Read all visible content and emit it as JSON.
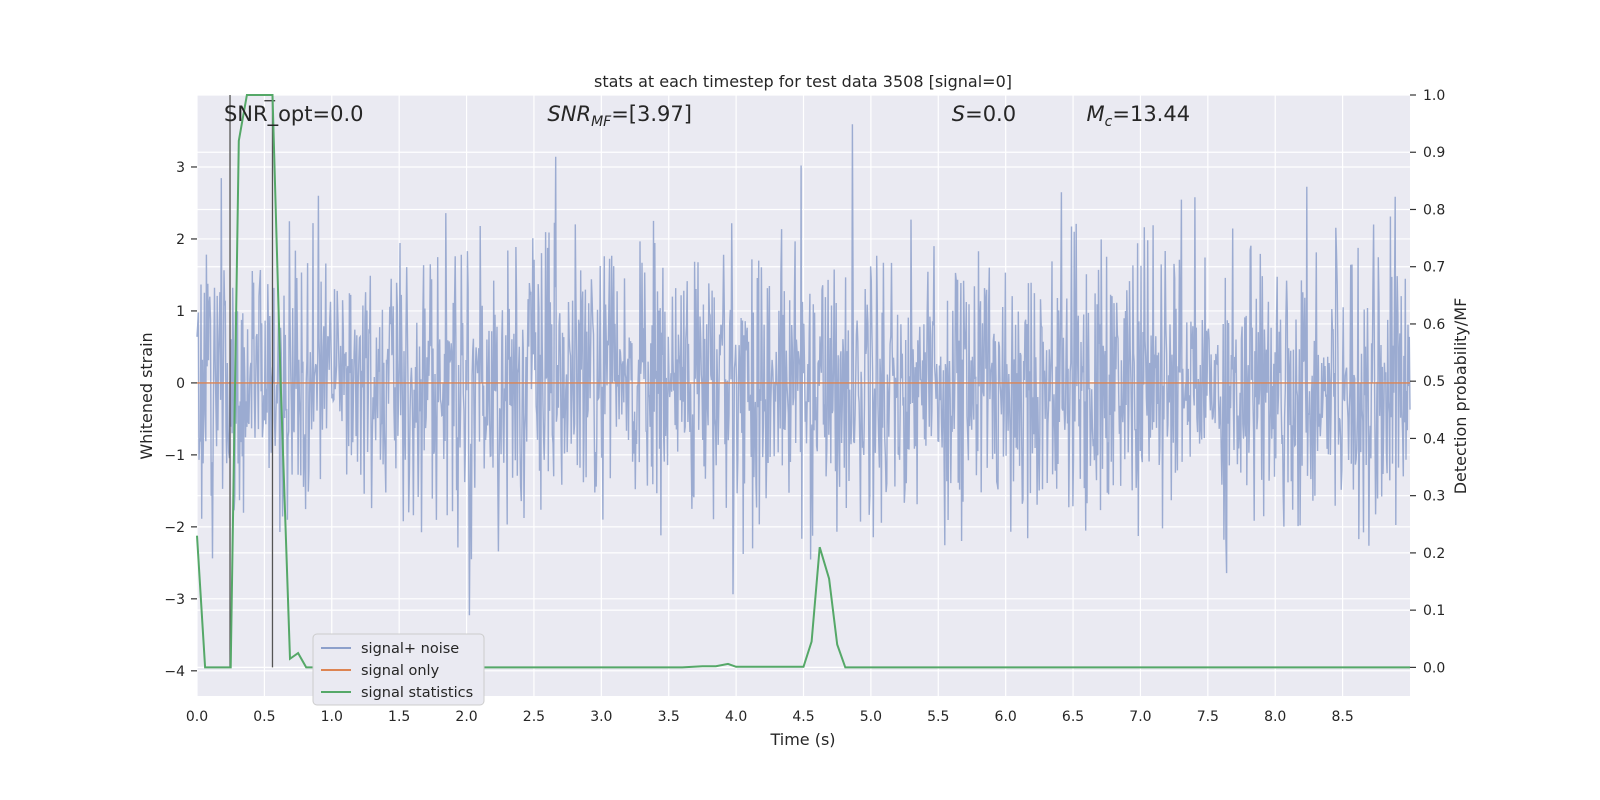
{
  "chart_data": {
    "type": "line",
    "title": "stats at each timestep for test data 3508 [signal=0]",
    "xlabel": "Time (s)",
    "ylabel": "Whitened strain",
    "ylabel_right": "Detection probability/MF",
    "xlim": [
      0.0,
      9.0
    ],
    "ylim": [
      -4.35,
      4.0
    ],
    "ylim_right": [
      -0.05,
      1.0
    ],
    "x_ticks": [
      "0.0",
      "0.5",
      "1.0",
      "1.5",
      "2.0",
      "2.5",
      "3.0",
      "3.5",
      "4.0",
      "4.5",
      "5.0",
      "5.5",
      "6.0",
      "6.5",
      "7.0",
      "7.5",
      "8.0",
      "8.5"
    ],
    "y_ticks": [
      "3",
      "2",
      "1",
      "0",
      "−1",
      "−2",
      "−3",
      "−4"
    ],
    "y_ticks_right": [
      "1.0",
      "0.9",
      "0.8",
      "0.7",
      "0.6",
      "0.5",
      "0.4",
      "0.3",
      "0.2",
      "0.1",
      "0.0"
    ],
    "grid": true,
    "legend_position": "lower-left",
    "annotations": [
      {
        "text": "SNR_opt=0.0",
        "x": 0.2
      },
      {
        "text": "SNR_MF=[3.97]",
        "x": 2.6
      },
      {
        "text": "S=0.0",
        "x": 5.6
      },
      {
        "text": "M_c=13.44",
        "x": 6.6
      }
    ],
    "series": [
      {
        "name": "signal+ noise",
        "axis": "left",
        "color": "#8da0cb",
        "description_level": "gaussian noise band about 0, mostly within ±2 with peaks near ±3.5",
        "noise_std": 0.95,
        "samples": 1800
      },
      {
        "name": "signal only",
        "axis": "left",
        "color": "#dd8452",
        "x": [
          0.0,
          9.0
        ],
        "y": [
          0.0,
          0.0
        ]
      },
      {
        "name": "signal statistics",
        "axis": "right",
        "color": "#55a868",
        "x": [
          0.0,
          0.06,
          0.25,
          0.31,
          0.37,
          0.44,
          0.5,
          0.56,
          0.62,
          0.69,
          0.75,
          0.81,
          1.0,
          3.6,
          3.75,
          3.85,
          3.94,
          4.0,
          4.5,
          4.56,
          4.62,
          4.69,
          4.75,
          4.81,
          9.0
        ],
        "y": [
          0.23,
          0.0,
          0.0,
          0.92,
          1.0,
          1.0,
          1.0,
          1.0,
          0.5,
          0.015,
          0.025,
          0.0,
          0.0,
          0.0,
          0.002,
          0.002,
          0.006,
          0.001,
          0.001,
          0.045,
          0.21,
          0.155,
          0.04,
          0.0,
          0.0
        ]
      }
    ],
    "markers": [
      {
        "name": "vertical-marker-start",
        "x": 0.245
      },
      {
        "name": "vertical-marker-end",
        "x": 0.56
      }
    ]
  }
}
